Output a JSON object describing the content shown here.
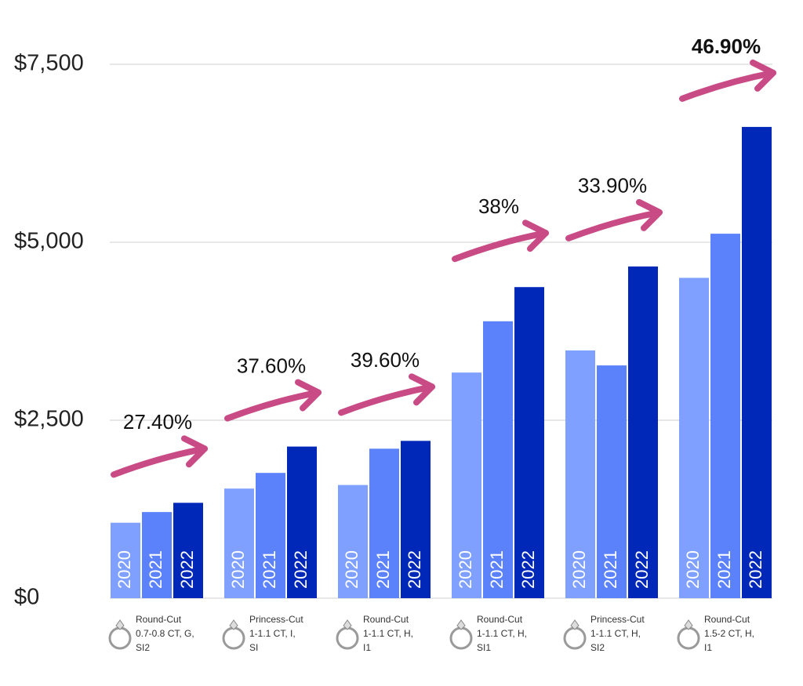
{
  "chart_data": {
    "type": "bar",
    "categories": [
      [
        "Round-Cut",
        "0.7-0.8 CT, G,",
        "SI2"
      ],
      [
        "Princess-Cut",
        "1-1.1 CT, I,",
        "SI"
      ],
      [
        "Round-Cut",
        "1-1.1 CT, H,",
        "I1"
      ],
      [
        "Round-Cut",
        "1-1.1 CT, H,",
        "SI1"
      ],
      [
        "Princess-Cut",
        "1-1.1 CT, H,",
        "SI2"
      ],
      [
        "Round-Cut",
        "1.5-2 CT, H,",
        "I1"
      ]
    ],
    "series": [
      {
        "name": "2020",
        "color": "#7fa0ff",
        "values": [
          1060,
          1540,
          1590,
          3170,
          3480,
          4500
        ]
      },
      {
        "name": "2021",
        "color": "#5b82fb",
        "values": [
          1210,
          1760,
          2100,
          3890,
          3270,
          5120
        ]
      },
      {
        "name": "2022",
        "color": "#0028b8",
        "values": [
          1340,
          2130,
          2210,
          4370,
          4660,
          6620
        ]
      }
    ],
    "annotations": [
      "27.40%",
      "37.60%",
      "39.60%",
      "38%",
      "33.90%",
      "46.90%"
    ],
    "annotation_color": "#c94b86",
    "ylim": [
      0,
      7500
    ],
    "yticks": [
      {
        "value": 0,
        "label": "$0"
      },
      {
        "value": 2500,
        "label": "$2,500"
      },
      {
        "value": 5000,
        "label": "$5,000"
      },
      {
        "value": 7500,
        "label": "$7,500"
      }
    ],
    "grid": true
  }
}
